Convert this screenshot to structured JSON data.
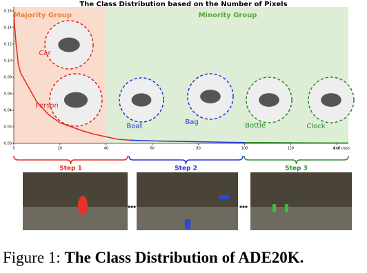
{
  "chart_data": {
    "type": "line",
    "title": "The Class Distribution based on the Number of Pixels",
    "x_label": "# of class",
    "regions": [
      {
        "name": "Majority Group",
        "color": "#f9dccd",
        "x": [
          0,
          40
        ]
      },
      {
        "name": "Minority Group",
        "color": "#deedd5",
        "x": [
          40,
          145
        ]
      }
    ],
    "object_labels": [
      "Car",
      "Person",
      "Boat",
      "Bag",
      "Bottle",
      "Clock"
    ],
    "series": [
      {
        "color": "#e8261b",
        "x": [
          0,
          1,
          2,
          3,
          5,
          8,
          10,
          15,
          20,
          25,
          30,
          35,
          40,
          45,
          50
        ],
        "values": [
          0.155,
          0.12,
          0.095,
          0.085,
          0.075,
          0.06,
          0.05,
          0.035,
          0.025,
          0.02,
          0.015,
          0.011,
          0.008,
          0.005,
          0.004
        ]
      },
      {
        "color": "#2433d6",
        "x": [
          50,
          60,
          70,
          80,
          90,
          100
        ],
        "values": [
          0.004,
          0.003,
          0.0025,
          0.002,
          0.0015,
          0.001
        ]
      },
      {
        "color": "#2a8a2a",
        "x": [
          100,
          110,
          120,
          130,
          145
        ],
        "values": [
          0.001,
          0.001,
          0.0008,
          0.0006,
          0.0005
        ]
      }
    ],
    "xlim": [
      0,
      145
    ],
    "ylim": [
      0,
      0.165
    ],
    "xticks": [
      0,
      20,
      40,
      60,
      80,
      100,
      120,
      140
    ],
    "yticks": [
      {
        "value": 0,
        "label": "0.00"
      },
      {
        "value": 0.02,
        "label": "0.02"
      },
      {
        "value": 0.04,
        "label": "0.04"
      },
      {
        "value": 0.06,
        "label": "0.06"
      },
      {
        "value": 0.08,
        "label": "0.08"
      },
      {
        "value": 0.1,
        "label": "0.10"
      },
      {
        "value": 0.12,
        "label": "0.12"
      },
      {
        "value": 0.14,
        "label": "0.14"
      },
      {
        "value": 0.16,
        "label": "0.16"
      }
    ]
  },
  "steps": [
    "Step 1",
    "Step 2",
    "Step 3"
  ],
  "caption": {
    "label": "Figure 1:",
    "text": "The Class Distribution of ADE20K."
  }
}
